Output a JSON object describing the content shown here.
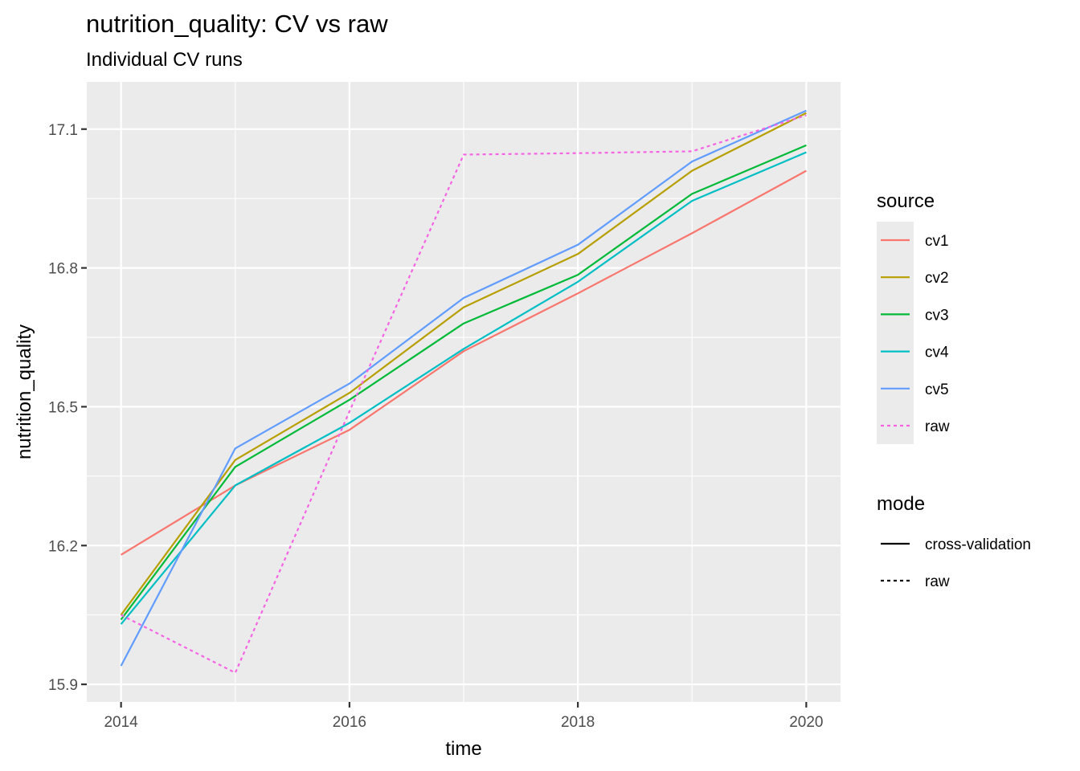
{
  "chart_data": {
    "type": "line",
    "title": "nutrition_quality: CV vs raw",
    "subtitle": "Individual CV runs",
    "xlabel": "time",
    "ylabel": "nutrition_quality",
    "x": [
      2014,
      2015,
      2016,
      2017,
      2018,
      2019,
      2020
    ],
    "xlim": [
      2013.7,
      2020.3
    ],
    "ylim": [
      15.862,
      17.202
    ],
    "x_ticks": [
      2014,
      2016,
      2018,
      2020
    ],
    "y_ticks": [
      15.9,
      16.2,
      16.5,
      16.8,
      17.1
    ],
    "y_tick_labels": [
      "15.9",
      "16.2",
      "16.5",
      "16.8",
      "17.1"
    ],
    "grid": true,
    "legend_position": "right",
    "series": [
      {
        "name": "cv1",
        "mode": "cross-validation",
        "color": "#F8766D",
        "values": [
          16.18,
          16.33,
          16.45,
          16.62,
          16.745,
          16.875,
          17.01
        ]
      },
      {
        "name": "cv2",
        "mode": "cross-validation",
        "color": "#B79F00",
        "values": [
          16.05,
          16.385,
          16.53,
          16.715,
          16.83,
          17.01,
          17.135
        ]
      },
      {
        "name": "cv3",
        "mode": "cross-validation",
        "color": "#00BA38",
        "values": [
          16.04,
          16.37,
          16.515,
          16.68,
          16.785,
          16.96,
          17.065
        ]
      },
      {
        "name": "cv4",
        "mode": "cross-validation",
        "color": "#00BFC4",
        "values": [
          16.03,
          16.33,
          16.465,
          16.625,
          16.77,
          16.945,
          17.05
        ]
      },
      {
        "name": "cv5",
        "mode": "cross-validation",
        "color": "#619CFF",
        "values": [
          15.94,
          16.41,
          16.55,
          16.735,
          16.85,
          17.03,
          17.14
        ]
      },
      {
        "name": "raw",
        "mode": "raw",
        "color": "#F564E3",
        "values": [
          16.05,
          15.925,
          16.49,
          17.045,
          17.048,
          17.052,
          17.13
        ]
      }
    ],
    "legend_source": {
      "title": "source",
      "items": [
        "cv1",
        "cv2",
        "cv3",
        "cv4",
        "cv5",
        "raw"
      ]
    },
    "legend_mode": {
      "title": "mode",
      "items": [
        "cross-validation",
        "raw"
      ]
    }
  }
}
